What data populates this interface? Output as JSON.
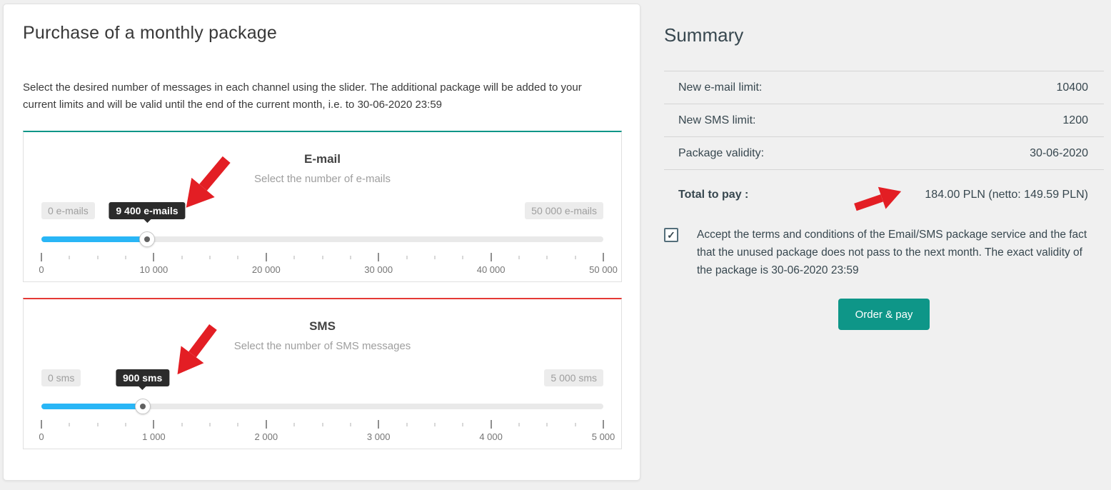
{
  "colors": {
    "teal": "#0e9688",
    "red": "#e53935",
    "blue": "#29b6f6",
    "arrow-red": "#e31e24"
  },
  "purchase_panel": {
    "title": "Purchase of a monthly package",
    "description": "Select the desired number of messages in each channel using the slider. The additional package will be added to your current limits and will be valid until the end of the current month, i.e. to 30-06-2020 23:59",
    "sliders": [
      {
        "id": "email",
        "accent_color": "#0e9688",
        "title": "E-mail",
        "subtitle": "Select the number of e-mails",
        "min_label": "0 e-mails",
        "max_label": "50 000 e-mails",
        "value_label": "9 400 e-mails",
        "value": 9400,
        "min": 0,
        "max": 50000,
        "percent": 18.8,
        "tick_labels": [
          "0",
          "10 000",
          "20 000",
          "30 000",
          "40 000",
          "50 000"
        ]
      },
      {
        "id": "sms",
        "accent_color": "#e53935",
        "title": "SMS",
        "subtitle": "Select the number of SMS messages",
        "min_label": "0 sms",
        "max_label": "5 000 sms",
        "value_label": "900 sms",
        "value": 900,
        "min": 0,
        "max": 5000,
        "percent": 18,
        "tick_labels": [
          "0",
          "1 000",
          "2 000",
          "3 000",
          "4 000",
          "5 000"
        ]
      }
    ]
  },
  "summary": {
    "title": "Summary",
    "rows": [
      {
        "label": "New e-mail limit:",
        "value": "10400"
      },
      {
        "label": "New SMS limit:",
        "value": "1200"
      },
      {
        "label": "Package validity:",
        "value": "30-06-2020"
      }
    ],
    "total_label": "Total to pay :",
    "total_value": "184.00 PLN (netto: 149.59 PLN)",
    "terms_checked": true,
    "check_glyph": "✓",
    "terms_text": "Accept the terms and conditions of the Email/SMS package service and the fact that the unused package does not pass to the next month. The exact validity of the package is 30-06-2020 23:59",
    "order_button": "Order & pay"
  }
}
